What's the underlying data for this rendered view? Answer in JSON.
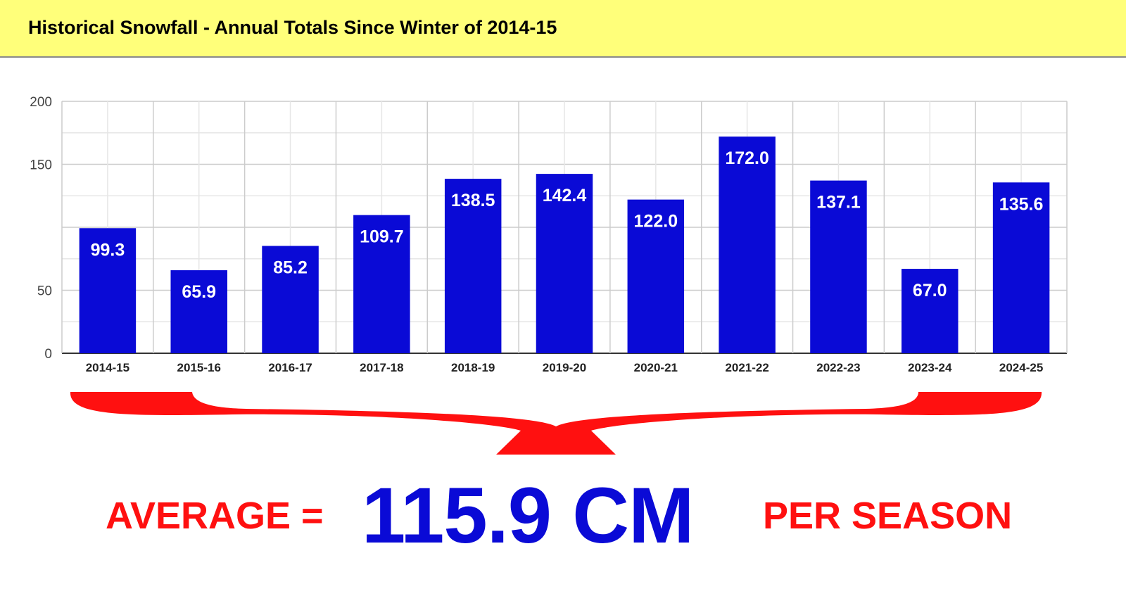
{
  "header": {
    "title": "Historical Snowfall - Annual Totals Since Winter of 2014-15"
  },
  "colors": {
    "header_bg": "#ffff7a",
    "bar": "#0a0ad6",
    "brace": "#ff1010",
    "average_prefix": "#ff1010",
    "average_value": "#0a0ad6"
  },
  "chart_data": {
    "type": "bar",
    "categories": [
      "2014-15",
      "2015-16",
      "2016-17",
      "2017-18",
      "2018-19",
      "2019-20",
      "2020-21",
      "2021-22",
      "2022-23",
      "2023-24",
      "2024-25"
    ],
    "values": [
      99.3,
      65.9,
      85.2,
      109.7,
      138.5,
      142.4,
      122.0,
      172.0,
      137.1,
      67.0,
      135.6
    ],
    "value_labels": [
      "99.3",
      "65.9",
      "85.2",
      "109.7",
      "138.5",
      "142.4",
      "122.0",
      "172.0",
      "137.1",
      "67.0",
      "135.6"
    ],
    "ylim": [
      0,
      200
    ],
    "y_ticks": [
      "0",
      "50",
      "150",
      "200"
    ],
    "y_tick_values": [
      0,
      50,
      150,
      200
    ],
    "grid": true,
    "legend": "none"
  },
  "average": {
    "prefix": "AVERAGE =",
    "value": "115.9 CM",
    "suffix": "PER SEASON"
  }
}
